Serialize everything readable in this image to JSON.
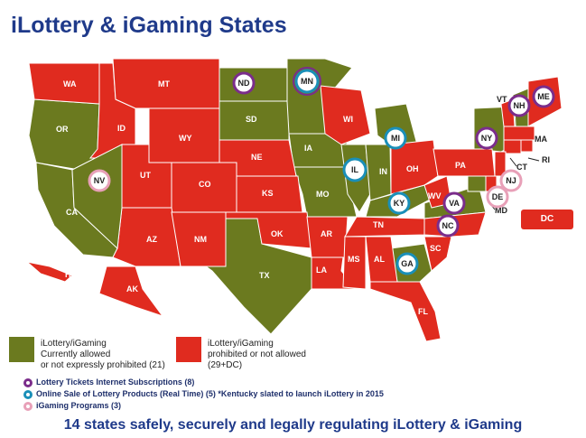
{
  "title": "iLottery & iGaming States",
  "colors": {
    "allowed": "#6b7a1f",
    "prohibited": "#e02b1f",
    "ring_lottery_tickets": "#7b2d8b",
    "ring_online_sale": "#1a8fb8",
    "ring_igaming": "#e8a0b8"
  },
  "states": {
    "WA": "WA",
    "OR": "OR",
    "CA": "CA",
    "NV": "NV",
    "ID": "ID",
    "MT": "MT",
    "WY": "WY",
    "UT": "UT",
    "AZ": "AZ",
    "CO": "CO",
    "NM": "NM",
    "ND": "ND",
    "SD": "SD",
    "NE": "NE",
    "KS": "KS",
    "OK": "OK",
    "TX": "TX",
    "MN": "MN",
    "IA": "IA",
    "MO": "MO",
    "AR": "AR",
    "LA": "LA",
    "WI": "WI",
    "IL": "IL",
    "MI": "MI",
    "IN": "IN",
    "OH": "OH",
    "KY": "KY",
    "TN": "TN",
    "MS": "MS",
    "AL": "AL",
    "GA": "GA",
    "FL": "FL",
    "SC": "SC",
    "NC": "NC",
    "VA": "VA",
    "WV": "WV",
    "PA": "PA",
    "NY": "NY",
    "VT": "VT",
    "NH": "NH",
    "ME": "ME",
    "MA": "MA",
    "RI": "RI",
    "CT": "CT",
    "NJ": "NJ",
    "DE": "DE",
    "MD": "MD",
    "AK": "AK",
    "HI": "HI"
  },
  "dc_label": "DC",
  "legend": {
    "allowed_line1": "iLottery/iGaming",
    "allowed_line2": "Currently allowed",
    "allowed_line3": "or not expressly prohibited (21)",
    "prohibited_line1": "iLottery/iGaming",
    "prohibited_line2": "prohibited or not allowed",
    "prohibited_line3": "(29+DC)",
    "ring_lottery_tickets": "Lottery Tickets Internet Subscriptions (8)",
    "ring_online_sale": "Online Sale of Lottery Products (Real Time) (5) *Kentucky slated to launch iLottery in 2015",
    "ring_igaming": "iGaming Programs (3)"
  },
  "footer": "14 states safely, securely and legally regulating iLottery & iGaming"
}
